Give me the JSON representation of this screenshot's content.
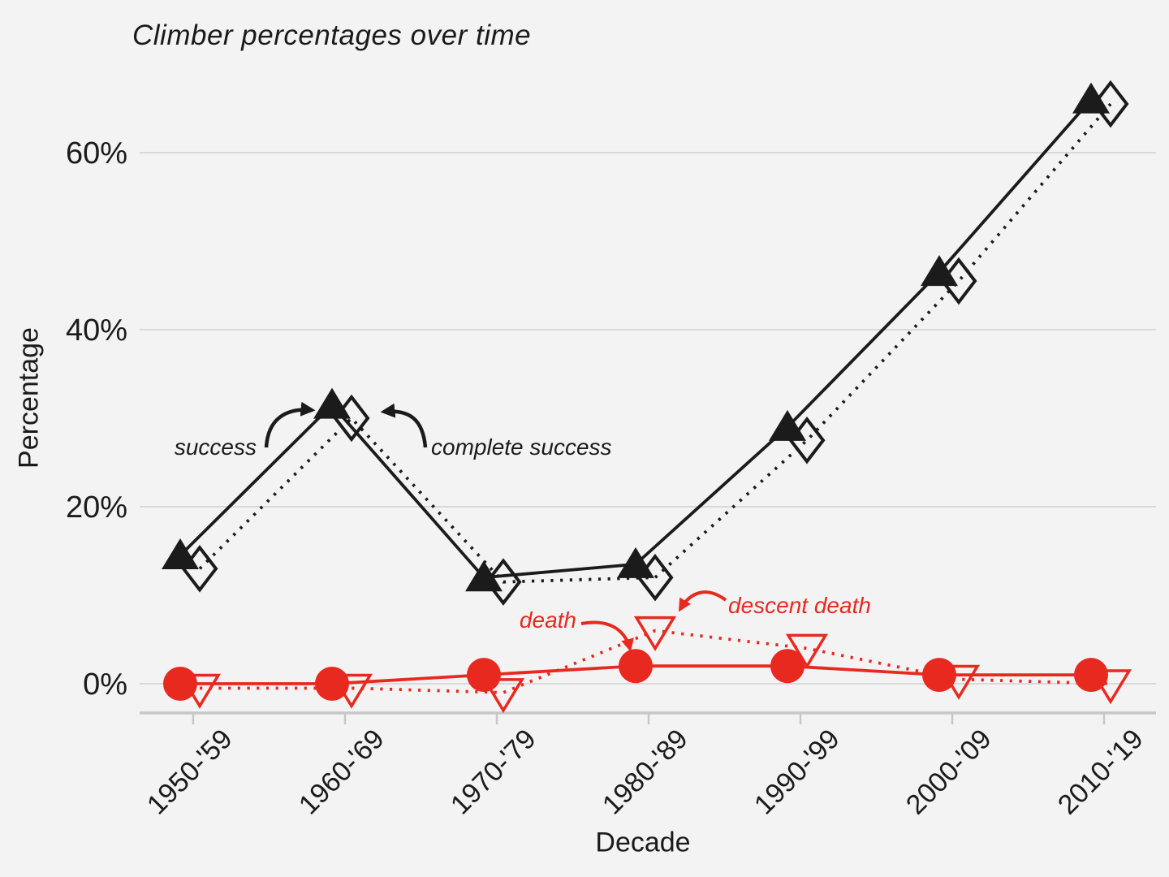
{
  "chart_data": {
    "type": "line",
    "title": "Climber percentages over time",
    "xlabel": "Decade",
    "ylabel": "Percentage",
    "categories": [
      "1950-'59",
      "1960-'69",
      "1970-'79",
      "1980-'89",
      "1990-'99",
      "2000-'09",
      "2010-'19"
    ],
    "y_axis": {
      "ticks": [
        {
          "value": 0,
          "label": "0%"
        },
        {
          "value": 20,
          "label": "20%"
        },
        {
          "value": 40,
          "label": "40%"
        },
        {
          "value": 60,
          "label": "60%"
        }
      ],
      "range_shown": [
        -4,
        68
      ]
    },
    "grid": "horizontal-only",
    "legend": "inline-annotations",
    "series": [
      {
        "name": "success",
        "color": "#1b1b1b",
        "line_style": "solid",
        "marker": "filled-triangle-up",
        "values": [
          14.5,
          31.5,
          12,
          13.5,
          29,
          46.5,
          66
        ]
      },
      {
        "name": "complete success",
        "color": "#1b1b1b",
        "line_style": "dotted",
        "marker": "open-diamond",
        "values": [
          13,
          30,
          11.5,
          12,
          27.5,
          45.5,
          65.5
        ]
      },
      {
        "name": "death",
        "color": "#e8291f",
        "line_style": "solid",
        "marker": "filled-circle",
        "values": [
          0,
          0,
          1,
          2,
          2,
          1,
          1
        ]
      },
      {
        "name": "descent death",
        "color": "#e8291f",
        "line_style": "dotted",
        "marker": "open-triangle-down",
        "values": [
          -0.5,
          -0.5,
          -1,
          6,
          4,
          0.5,
          0
        ]
      }
    ],
    "annotations": [
      {
        "text": "success",
        "color": "#1b1b1b"
      },
      {
        "text": "complete success",
        "color": "#1b1b1b"
      },
      {
        "text": "death",
        "color": "#e8291f"
      },
      {
        "text": "descent death",
        "color": "#e8291f"
      }
    ]
  },
  "colors": {
    "background": "#f4f3f4",
    "gridline": "#d9d9d9",
    "axis_line": "#c7c7c7",
    "black_series": "#1b1b1b",
    "red_series": "#e8291f"
  }
}
